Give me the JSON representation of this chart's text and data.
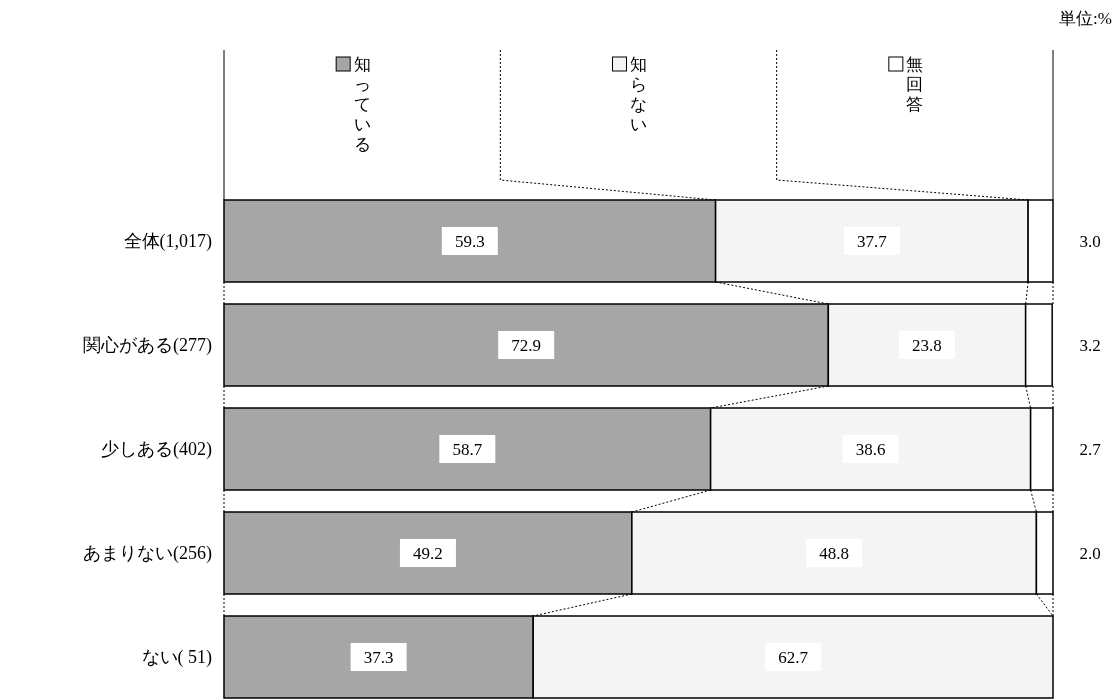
{
  "chart_data": {
    "type": "bar",
    "orientation": "horizontal",
    "stacked": true,
    "categories": [
      "全体(1,017)",
      "関心がある(277)",
      "少しある(402)",
      "あまりない(256)",
      "ない( 51)"
    ],
    "series": [
      {
        "name": "知っている",
        "color": "#a6a6a6",
        "values": [
          59.3,
          72.9,
          58.7,
          49.2,
          37.3
        ],
        "value_labels": [
          "59.3",
          "72.9",
          "58.7",
          "49.2",
          "37.3"
        ]
      },
      {
        "name": "知らない",
        "color": "#f4f4f4",
        "values": [
          37.7,
          23.8,
          38.6,
          48.8,
          62.7
        ],
        "value_labels": [
          "37.7",
          "23.8",
          "38.6",
          "48.8",
          "62.7"
        ]
      },
      {
        "name": "無回答",
        "color": "#ffffff",
        "values": [
          3.0,
          3.2,
          2.7,
          2.0,
          null
        ],
        "value_labels": [
          "3.0",
          "3.2",
          "2.7",
          "2.0",
          null
        ]
      }
    ],
    "xlim": [
      0,
      100
    ],
    "legend": "top",
    "annotations": [
      "単位:%"
    ]
  }
}
